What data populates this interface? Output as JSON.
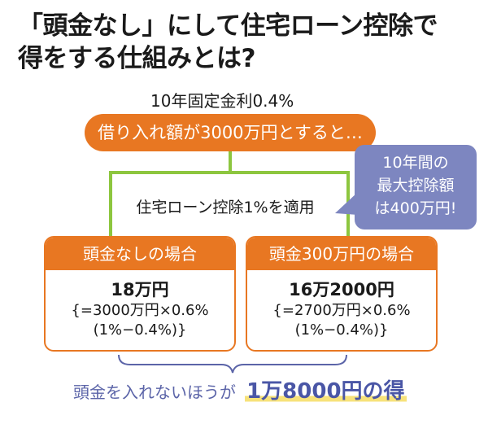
{
  "title": {
    "line1": "「頭金なし」にして住宅ローン控除で",
    "line2": "得をする仕組みとは?"
  },
  "rate_label": "10年固定金利0.4%",
  "borrow_label": "借り入れ額が3000万円とすると…",
  "callout": {
    "line1": "10年間の",
    "line2": "最大控除額",
    "line3": "は400万円!"
  },
  "deduction_label": "住宅ローン控除1%を適用",
  "cases": [
    {
      "head": "頭金なしの場合",
      "amount": "18万円",
      "calc1": "{=3000万円×0.6%",
      "calc2": "(1%−0.4%)}"
    },
    {
      "head": "頭金300万円の場合",
      "amount": "16万2000円",
      "calc1": "{=2700万円×0.6%",
      "calc2": "(1%−0.4%)}"
    }
  ],
  "conclusion": {
    "prefix": "頭金を入れないほうが",
    "result": "1万8000円の得"
  },
  "colors": {
    "orange": "#e87722",
    "green": "#8dc63f",
    "purple": "#7d86c0",
    "highlight": "#f7e27a"
  }
}
